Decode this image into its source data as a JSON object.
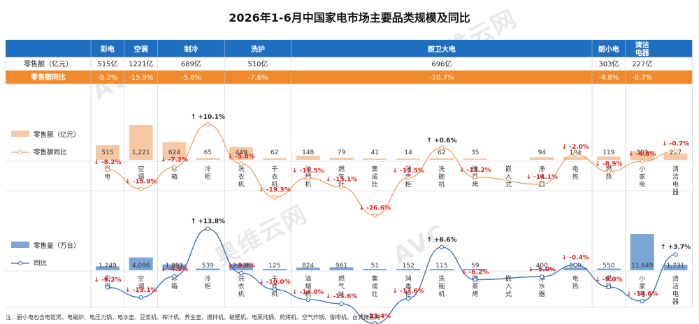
{
  "title": "2026年1-6月中国家电市场主要品类规模及同比",
  "watermark": [
    "AVC",
    "奥维云网",
    "ALL VIEW CLOUD"
  ],
  "colors": {
    "header_blue": "#1f6fc0",
    "yoy_orange": "#f08a2c",
    "bar_orange": "#f6c9a4",
    "line_orange": "#f0a060",
    "bar_blue": "#7aa6d6",
    "line_blue": "#2f6db5",
    "neg_red": "#e02020"
  },
  "table": {
    "row_labels": {
      "sales": "零售额（亿元）",
      "yoy": "零售额同比"
    },
    "groups": [
      {
        "name": "彩电",
        "sales": "515亿",
        "yoy": "-8.2%",
        "span": 1
      },
      {
        "name": "空调",
        "sales": "1221亿",
        "yoy": "-15.9%",
        "span": 1
      },
      {
        "name": "制冷",
        "sales": "689亿",
        "yoy": "-5.8%",
        "span": 2
      },
      {
        "name": "洗护",
        "sales": "510亿",
        "yoy": "-7.6%",
        "span": 2
      },
      {
        "name": "厨卫大电",
        "sales": "696亿",
        "yoy": "-10.7%",
        "span": 9
      },
      {
        "name": "厨小电",
        "sales": "303亿",
        "yoy": "-4.8%",
        "span": 1
      },
      {
        "name": "清洁电器",
        "sales": "227亿",
        "yoy": "-0.7%",
        "span": 1
      }
    ]
  },
  "chart_data": [
    {
      "type": "bar",
      "legend": [
        "零售额（亿元）",
        "零售额同比"
      ],
      "categories": [
        "彩电",
        "空调",
        "冰箱",
        "冷柜",
        "洗衣机",
        "干衣机",
        "油烟机",
        "燃气灶",
        "集成灶",
        "消毒柜",
        "洗碗机",
        "微蒸烤",
        "嵌入式",
        "净水器",
        "电热",
        "燃热",
        "小家电",
        "清洁电器"
      ],
      "series": [
        {
          "name": "零售额（亿元）",
          "values": [
            515,
            1221,
            624,
            65,
            449,
            62,
            148,
            79,
            41,
            14,
            62,
            35,
            null,
            94,
            104,
            119,
            303,
            227
          ]
        },
        {
          "name": "零售额同比",
          "values": [
            -8.2,
            -15.9,
            -7.2,
            10.1,
            -5.8,
            -19.3,
            -11.5,
            -15.1,
            -26.6,
            -11.5,
            0.6,
            -11.2,
            null,
            -14.1,
            -2.0,
            -8.9,
            -4.8,
            -0.7
          ]
        }
      ],
      "labels": {
        "values": [
          "515",
          "1,221",
          "624",
          "65",
          "449",
          "62",
          "148",
          "79",
          "41",
          "14",
          "62",
          "35",
          "",
          "94",
          "104",
          "119",
          "303",
          "227"
        ],
        "yoy": [
          "↓ -8.2%",
          "↓ -15.9%",
          "↓ -7.2%",
          "↑ +10.1%",
          "↓ -5.8%",
          "↓ -19.3%",
          "↓ -11.5%",
          "↓ -15.1%",
          "↓ -26.6%",
          "↓ -11.5%",
          "↑ +0.6%",
          "↓ -11.2%",
          "",
          "↓ -14.1%",
          "↓ -2.0%",
          "↓ -8.9%",
          "↓ -4.8%",
          "↓ -0.7%"
        ]
      }
    },
    {
      "type": "bar",
      "legend": [
        "零售量（万台）",
        "同比"
      ],
      "categories": [
        "彩电",
        "空调",
        "冰箱",
        "冷柜",
        "洗衣机",
        "干衣机",
        "油烟机",
        "燃气灶",
        "集成灶",
        "消毒柜",
        "洗碗机",
        "微蒸烤",
        "嵌入式",
        "净水器",
        "电热",
        "燃热",
        "小家电",
        "清洁电器"
      ],
      "series": [
        {
          "name": "零售量（万台）",
          "values": [
            1249,
            4096,
            1891,
            539,
            2026,
            125,
            824,
            961,
            51,
            152,
            115,
            59,
            null,
            400,
            810,
            550,
            11649,
            1731
          ]
        },
        {
          "name": "同比",
          "values": [
            -9.2,
            -13.1,
            -4.9,
            13.8,
            -3.6,
            -10.0,
            -14.0,
            -15.6,
            -23.4,
            -13.6,
            6.6,
            -6.2,
            null,
            -5.0,
            -0.4,
            -9.0,
            -14.6,
            3.7
          ]
        }
      ],
      "labels": {
        "values": [
          "1,249",
          "4,096",
          "1,891",
          "539",
          "2,026",
          "125",
          "824",
          "961",
          "51",
          "152",
          "115",
          "59",
          "",
          "400",
          "810",
          "550",
          "11,649",
          "1,731"
        ],
        "yoy": [
          "↓ -9.2%",
          "↓ -13.1%",
          "↓ -4.9%",
          "↑ +13.8%",
          "↓ -3.6%",
          "↓ -10.0%",
          "↓ -14.0%",
          "↓ -15.6%",
          "↓ -23.4%",
          "↓ -13.6%",
          "↑ +6.6%",
          "↓ -6.2%",
          "",
          "↓ -5.0%",
          "↓ -0.4%",
          "↓ -9.0%",
          "↓ -14.6%",
          "↑ +3.7%"
        ]
      }
    }
  ],
  "note": "注：厨小电包含电饭煲、电磁炉、电压力锅、电水壶、豆浆机、榨汁机、养生壶、搅拌机、破壁机、电蒸炖锅、煎烤机、空气炸锅、咖啡机、台式微蒸烤"
}
